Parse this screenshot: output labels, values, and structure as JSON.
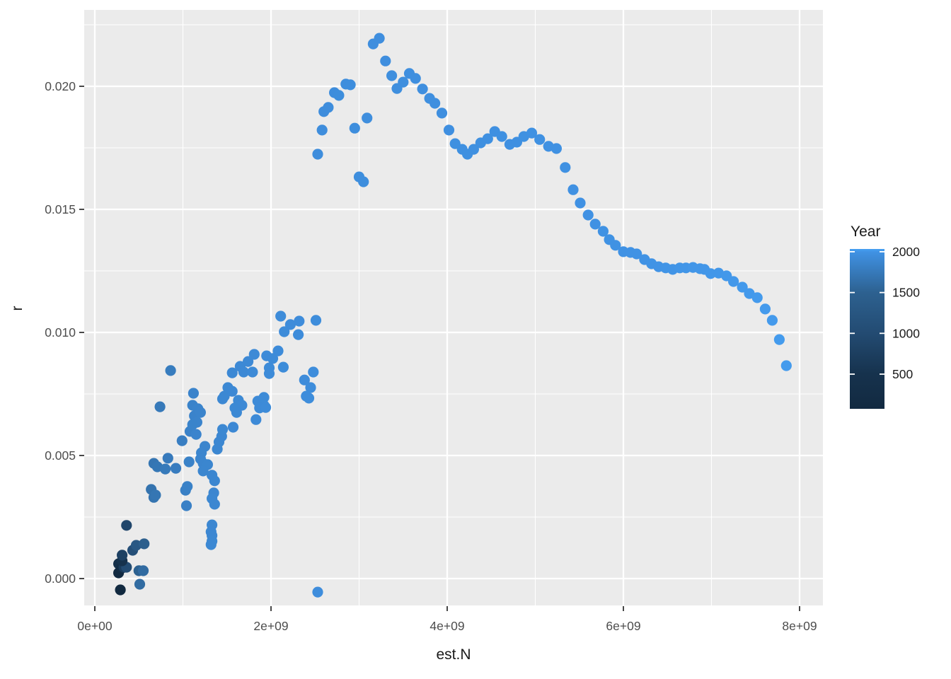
{
  "figure": {
    "background": "#FFFFFF",
    "panel_background": "#EBEBEB",
    "grid_color": "#FFFFFF",
    "axis_text_color": "#4D4D4D",
    "tick_mark_color": "#333333",
    "point_color_low": "#11293F",
    "point_color_high": "#47A1F3"
  },
  "axes": {
    "x": {
      "title": "est.N",
      "tick_labels": [
        "0e+00",
        "2e+09",
        "4e+09",
        "6e+09",
        "8e+09"
      ],
      "tick_values_e9": [
        0,
        2,
        4,
        6,
        8
      ],
      "minor_values_e9": [
        1,
        3,
        5,
        7
      ]
    },
    "y": {
      "title": "r",
      "tick_labels": [
        "0.000",
        "0.005",
        "0.010",
        "0.015",
        "0.020"
      ],
      "tick_values": [
        0,
        0.005,
        0.01,
        0.015,
        0.02
      ],
      "minor_values": [
        0.0025,
        0.0075,
        0.0125,
        0.0175,
        0.0225
      ]
    }
  },
  "legend": {
    "title": "Year",
    "tick_labels": [
      "2000",
      "1500",
      "1000",
      "500"
    ],
    "tick_values": [
      2000,
      1500,
      1000,
      500
    ],
    "domain": [
      75,
      2034
    ]
  },
  "chart_data": {
    "type": "scatter",
    "title": "",
    "xlabel": "est.N",
    "ylabel": "r",
    "color_label": "Year",
    "x_unit_multiplier": 1000000000.0,
    "xlim_e9": [
      0,
      8.3
    ],
    "ylim": [
      -0.0011,
      0.0231
    ],
    "grid": true,
    "legend_position": "right",
    "color_scale_stops": [
      [
        1,
        "#11293F"
      ],
      [
        500,
        "#16324D"
      ],
      [
        1000,
        "#234B72"
      ],
      [
        1500,
        "#2D6190"
      ],
      [
        2000,
        "#4092E4"
      ],
      [
        2034,
        "#47A1F3"
      ]
    ],
    "point_format": [
      "est_N_billions",
      "r",
      "year"
    ],
    "points": [
      [
        0.29,
        -0.00046,
        1
      ],
      [
        0.27,
        0.00023,
        60
      ],
      [
        0.27,
        0.0006,
        350
      ],
      [
        0.31,
        0.00043,
        200
      ],
      [
        0.33,
        0.00046,
        700
      ],
      [
        0.36,
        0.00046,
        1000
      ],
      [
        0.31,
        0.00072,
        500
      ],
      [
        0.31,
        0.00095,
        800
      ],
      [
        0.43,
        0.00115,
        1100
      ],
      [
        0.36,
        0.00216,
        900
      ],
      [
        0.47,
        0.00135,
        1300
      ],
      [
        0.56,
        0.00141,
        1450
      ],
      [
        0.5,
        0.00032,
        1500
      ],
      [
        0.55,
        0.00032,
        1600
      ],
      [
        0.51,
        -0.00023,
        1600
      ],
      [
        0.67,
        0.0033,
        1690
      ],
      [
        0.64,
        0.00362,
        1680
      ],
      [
        0.69,
        0.00339,
        1710
      ],
      [
        0.67,
        0.00468,
        1700
      ],
      [
        0.71,
        0.00454,
        1720
      ],
      [
        0.74,
        0.00698,
        1745
      ],
      [
        0.8,
        0.00445,
        1750
      ],
      [
        0.83,
        0.00489,
        1760
      ],
      [
        0.86,
        0.00845,
        1775
      ],
      [
        0.92,
        0.00448,
        1780
      ],
      [
        0.99,
        0.0056,
        1800
      ],
      [
        1.03,
        0.00359,
        1815
      ],
      [
        1.04,
        0.00296,
        1820
      ],
      [
        1.05,
        0.00374,
        1825
      ],
      [
        1.08,
        0.00598,
        1840
      ],
      [
        1.07,
        0.00474,
        1835
      ],
      [
        1.11,
        0.00704,
        1848
      ],
      [
        1.12,
        0.00753,
        1850
      ],
      [
        1.17,
        0.0069,
        1855
      ],
      [
        1.13,
        0.00661,
        1852
      ],
      [
        1.2,
        0.00675,
        1858
      ],
      [
        1.16,
        0.00635,
        1856
      ],
      [
        1.11,
        0.00626,
        1854
      ],
      [
        1.15,
        0.00586,
        1862
      ],
      [
        1.25,
        0.00537,
        1866
      ],
      [
        1.21,
        0.00511,
        1868
      ],
      [
        1.2,
        0.00486,
        1870
      ],
      [
        1.23,
        0.00468,
        1872
      ],
      [
        1.28,
        0.00463,
        1874
      ],
      [
        1.23,
        0.00437,
        1873
      ],
      [
        1.33,
        0.0042,
        1878
      ],
      [
        1.36,
        0.00397,
        1880
      ],
      [
        1.35,
        0.00348,
        1882
      ],
      [
        1.33,
        0.00325,
        1884
      ],
      [
        1.36,
        0.00302,
        1886
      ],
      [
        1.33,
        0.00218,
        1888
      ],
      [
        1.32,
        0.0019,
        1890
      ],
      [
        1.33,
        0.00175,
        1892
      ],
      [
        1.33,
        0.00152,
        1894
      ],
      [
        1.32,
        0.00138,
        1896
      ],
      [
        1.39,
        0.00526,
        1885
      ],
      [
        1.41,
        0.00555,
        1888
      ],
      [
        1.44,
        0.00578,
        1892
      ],
      [
        1.45,
        0.00606,
        1895
      ],
      [
        1.57,
        0.00615,
        1902
      ],
      [
        1.83,
        0.00646,
        1922
      ],
      [
        1.45,
        0.0073,
        1896
      ],
      [
        1.47,
        0.00741,
        1898
      ],
      [
        1.51,
        0.00776,
        1900
      ],
      [
        1.56,
        0.00761,
        1902
      ],
      [
        1.56,
        0.00836,
        1903
      ],
      [
        1.63,
        0.00724,
        1906
      ],
      [
        1.67,
        0.00704,
        1908
      ],
      [
        1.59,
        0.00693,
        1905
      ],
      [
        1.61,
        0.00675,
        1907
      ],
      [
        1.65,
        0.00862,
        1908
      ],
      [
        1.69,
        0.00839,
        1910
      ],
      [
        1.74,
        0.00882,
        1912
      ],
      [
        1.79,
        0.00839,
        1914
      ],
      [
        1.85,
        0.00721,
        1920
      ],
      [
        1.92,
        0.00736,
        1924
      ],
      [
        1.92,
        0.00704,
        1925
      ],
      [
        1.87,
        0.00693,
        1923
      ],
      [
        1.94,
        0.00695,
        1926
      ],
      [
        1.81,
        0.00911,
        1918
      ],
      [
        1.95,
        0.00905,
        1928
      ],
      [
        2.02,
        0.00894,
        1930
      ],
      [
        2.08,
        0.00925,
        1932
      ],
      [
        1.98,
        0.00856,
        1929
      ],
      [
        1.98,
        0.00833,
        1931
      ],
      [
        2.14,
        0.00859,
        1934
      ],
      [
        2.11,
        0.01066,
        1936
      ],
      [
        2.22,
        0.01032,
        1938
      ],
      [
        2.32,
        0.01046,
        1940
      ],
      [
        2.15,
        0.01003,
        1937
      ],
      [
        2.31,
        0.00991,
        1941
      ],
      [
        2.51,
        0.01049,
        1946
      ],
      [
        2.48,
        0.00839,
        1944
      ],
      [
        2.38,
        0.00807,
        1943
      ],
      [
        2.45,
        0.00776,
        1945
      ],
      [
        2.4,
        0.00741,
        1947
      ],
      [
        2.43,
        0.00733,
        1948
      ],
      [
        2.53,
        -0.00055,
        1950
      ],
      [
        2.53,
        0.01724,
        1950
      ],
      [
        2.58,
        0.01822,
        1951
      ],
      [
        2.6,
        0.01897,
        1952
      ],
      [
        2.65,
        0.01914,
        1953
      ],
      [
        2.72,
        0.01974,
        1954
      ],
      [
        2.77,
        0.01963,
        1955
      ],
      [
        2.85,
        0.02009,
        1956
      ],
      [
        2.9,
        0.02006,
        1957
      ],
      [
        2.95,
        0.0183,
        1958
      ],
      [
        3.0,
        0.01632,
        1959
      ],
      [
        3.05,
        0.01612,
        1960
      ],
      [
        3.09,
        0.01871,
        1961
      ],
      [
        3.16,
        0.02172,
        1962
      ],
      [
        3.23,
        0.02195,
        1963
      ],
      [
        3.3,
        0.02103,
        1964
      ],
      [
        3.37,
        0.02043,
        1965
      ],
      [
        3.43,
        0.01991,
        1966
      ],
      [
        3.5,
        0.02017,
        1967
      ],
      [
        3.57,
        0.02052,
        1968
      ],
      [
        3.64,
        0.02032,
        1969
      ],
      [
        3.72,
        0.01989,
        1970
      ],
      [
        3.8,
        0.01951,
        1971
      ],
      [
        3.86,
        0.01931,
        1972
      ],
      [
        3.94,
        0.01891,
        1973
      ],
      [
        4.02,
        0.01822,
        1974
      ],
      [
        4.09,
        0.01767,
        1975
      ],
      [
        4.17,
        0.01744,
        1976
      ],
      [
        4.23,
        0.01724,
        1977
      ],
      [
        4.3,
        0.01744,
        1978
      ],
      [
        4.38,
        0.0177,
        1979
      ],
      [
        4.46,
        0.01787,
        1980
      ],
      [
        4.54,
        0.01816,
        1981
      ],
      [
        4.62,
        0.01796,
        1982
      ],
      [
        4.71,
        0.01764,
        1983
      ],
      [
        4.79,
        0.01773,
        1984
      ],
      [
        4.87,
        0.01796,
        1985
      ],
      [
        4.96,
        0.0181,
        1986
      ],
      [
        5.05,
        0.01784,
        1987
      ],
      [
        5.15,
        0.01756,
        1988
      ],
      [
        5.24,
        0.01747,
        1989
      ],
      [
        5.34,
        0.0167,
        1990
      ],
      [
        5.43,
        0.0158,
        1991
      ],
      [
        5.51,
        0.01526,
        1992
      ],
      [
        5.6,
        0.01477,
        1993
      ],
      [
        5.68,
        0.0144,
        1994
      ],
      [
        5.77,
        0.01411,
        1995
      ],
      [
        5.84,
        0.01377,
        1996
      ],
      [
        5.91,
        0.01354,
        1997
      ],
      [
        6.0,
        0.01328,
        1998
      ],
      [
        6.08,
        0.01325,
        1999
      ],
      [
        6.15,
        0.01319,
        2000
      ],
      [
        6.24,
        0.01296,
        2001
      ],
      [
        6.32,
        0.01279,
        2002
      ],
      [
        6.4,
        0.01267,
        2003
      ],
      [
        6.48,
        0.01262,
        2004
      ],
      [
        6.56,
        0.01256,
        2005
      ],
      [
        6.64,
        0.01262,
        2006
      ],
      [
        6.71,
        0.01262,
        2007
      ],
      [
        6.79,
        0.01264,
        2008
      ],
      [
        6.87,
        0.01259,
        2009
      ],
      [
        6.92,
        0.01256,
        2010
      ],
      [
        6.99,
        0.01239,
        2011
      ],
      [
        7.08,
        0.01241,
        2012
      ],
      [
        7.17,
        0.0123,
        2013
      ],
      [
        7.25,
        0.01207,
        2014
      ],
      [
        7.35,
        0.01184,
        2015
      ],
      [
        7.43,
        0.01158,
        2016
      ],
      [
        7.52,
        0.01141,
        2017
      ],
      [
        7.61,
        0.01095,
        2018
      ],
      [
        7.69,
        0.01049,
        2019
      ],
      [
        7.77,
        0.00971,
        2020
      ],
      [
        7.85,
        0.00865,
        2021
      ]
    ]
  }
}
